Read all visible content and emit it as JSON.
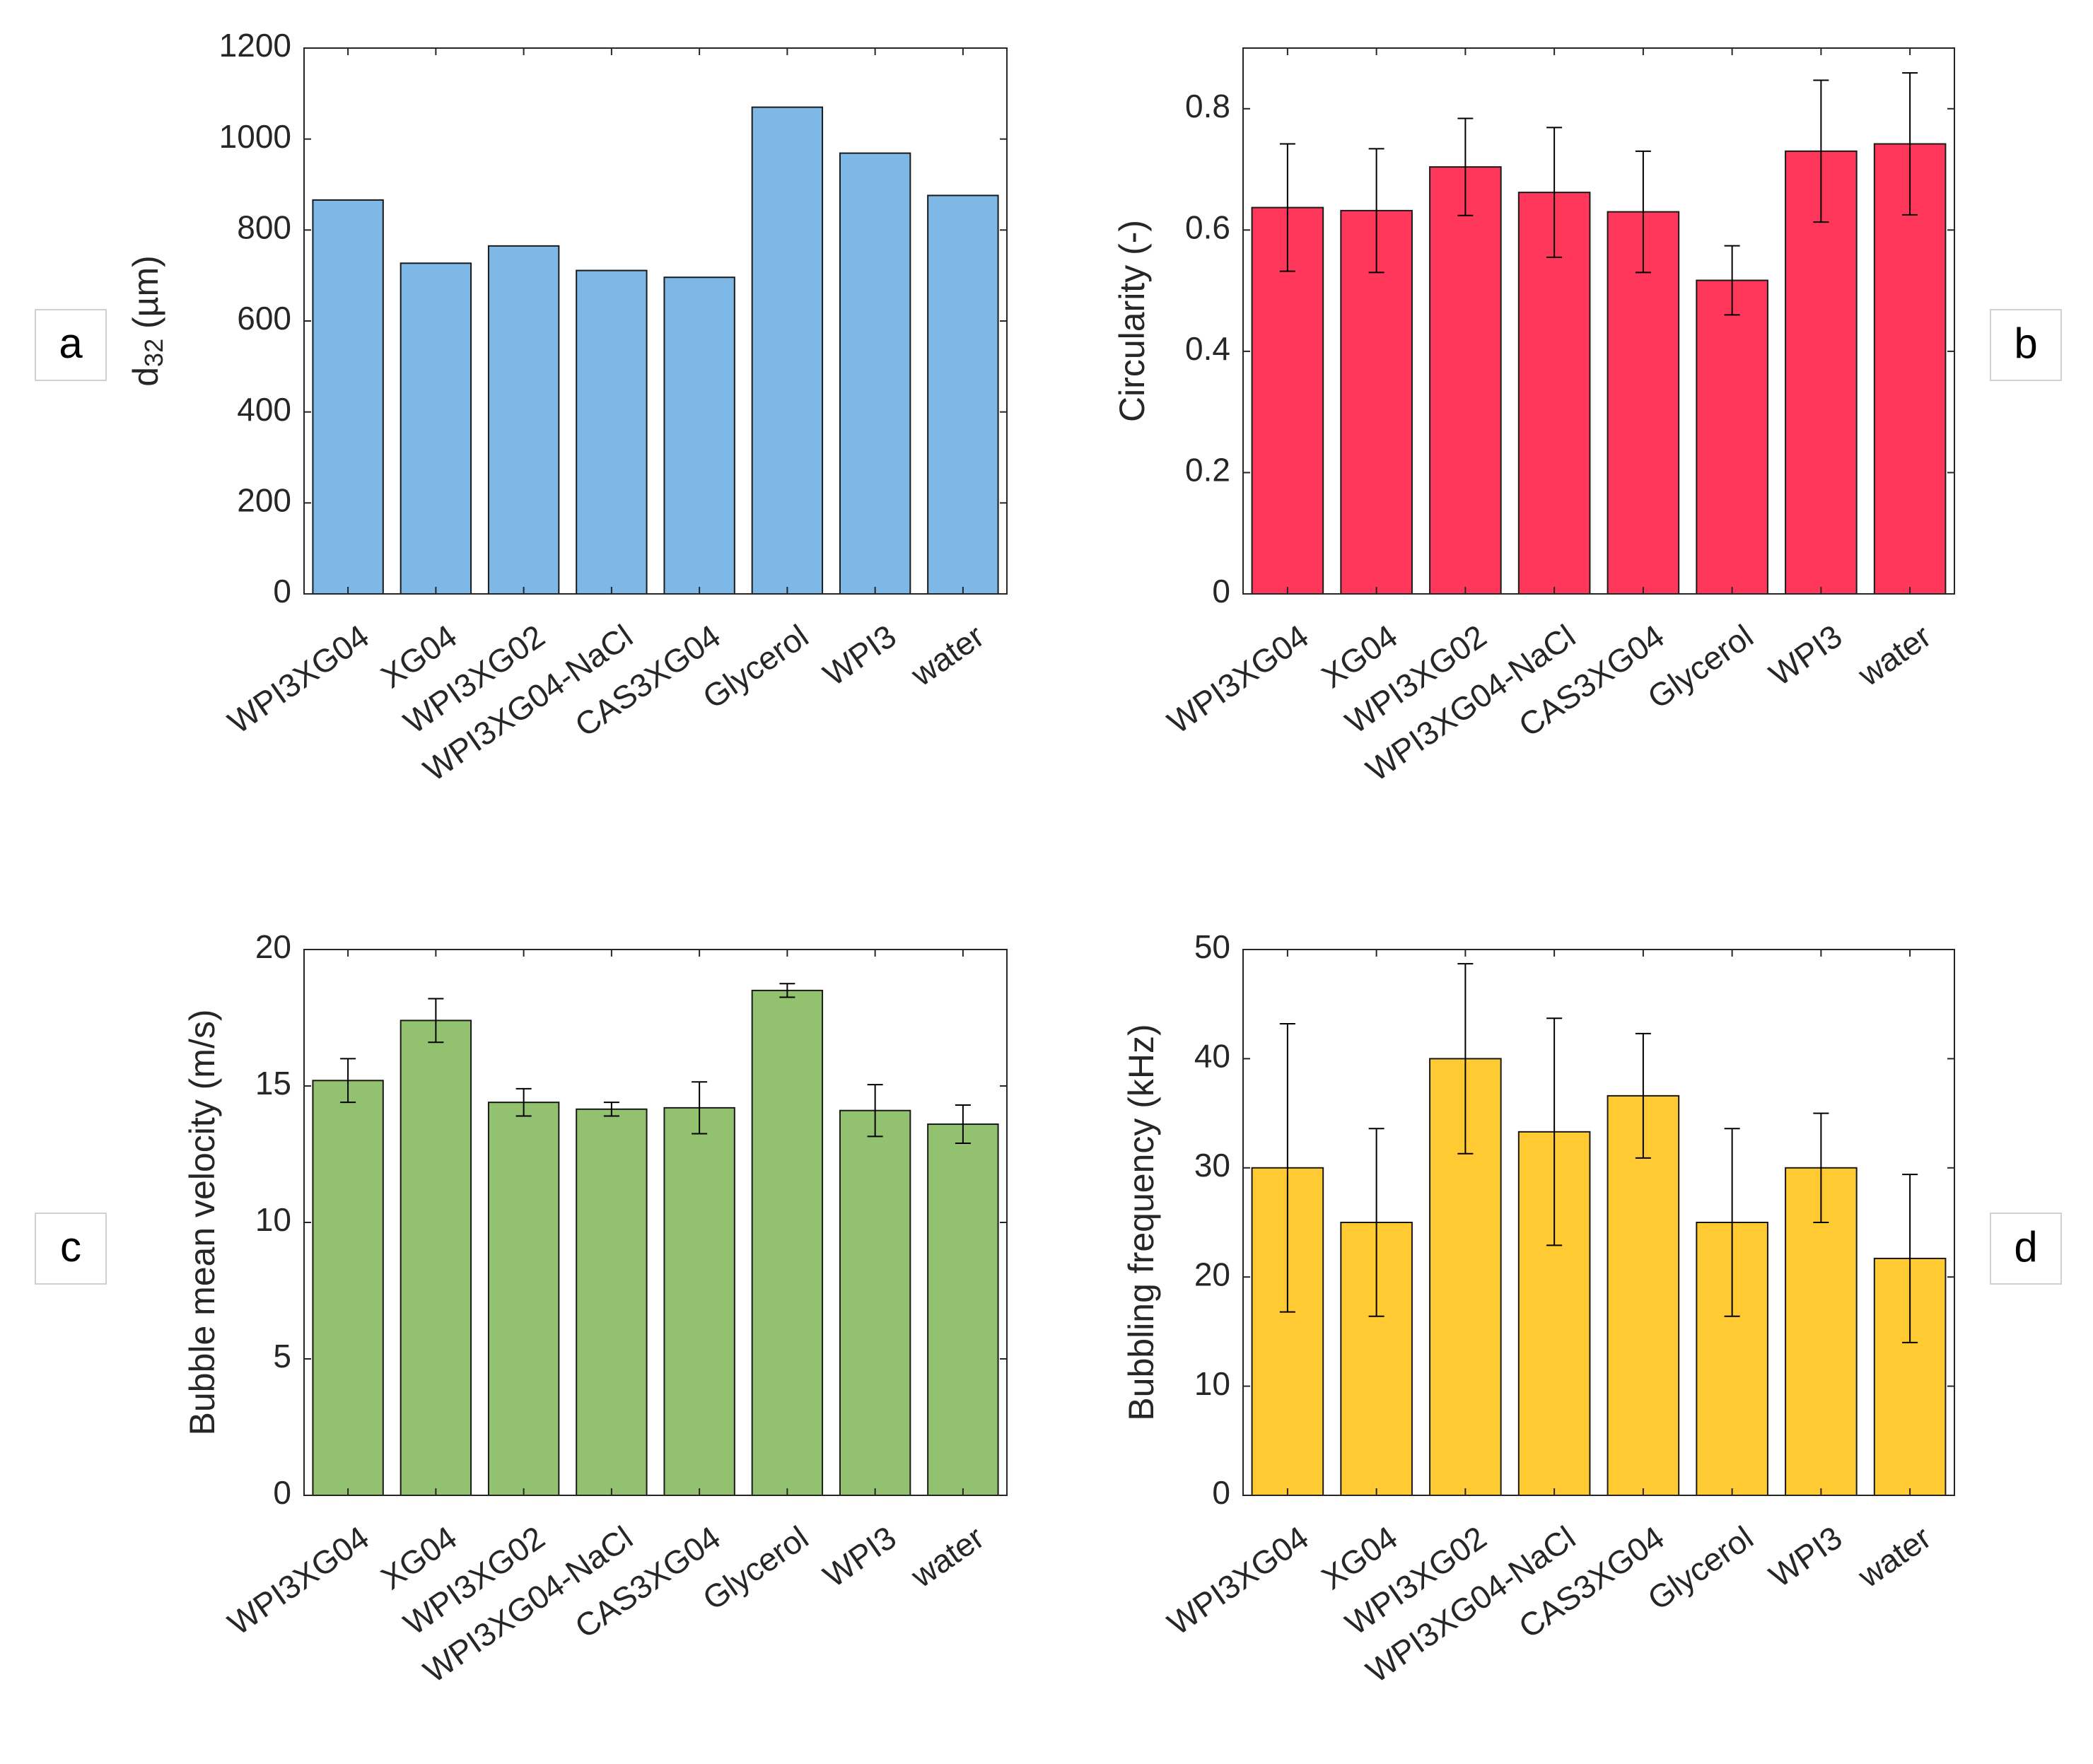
{
  "chart_data": [
    {
      "panel_label": "a",
      "type": "bar",
      "categories": [
        "WPI3XG04",
        "XG04",
        "WPI3XG02",
        "WPI3XG04-NaCl",
        "CAS3XG04",
        "Glycerol",
        "WPI3",
        "water"
      ],
      "values": [
        866,
        727,
        765,
        711,
        696,
        1070,
        969,
        876
      ],
      "errors": null,
      "ylabel_main": "d",
      "ylabel_sub": "32",
      "ylabel_rest": " (µm)",
      "ylim": [
        0,
        1200
      ],
      "yticks": [
        0,
        200,
        400,
        600,
        800,
        1000,
        1200
      ],
      "ytick_labels": [
        "0",
        "200",
        "400",
        "600",
        "800",
        "1000",
        "1200"
      ],
      "color": "#7eb8e6",
      "grid": false
    },
    {
      "panel_label": "b",
      "type": "bar",
      "categories": [
        "WPI3XG04",
        "XG04",
        "WPI3XG02",
        "WPI3XG04-NaCl",
        "CAS3XG04",
        "Glycerol",
        "WPI3",
        "water"
      ],
      "values": [
        0.637,
        0.632,
        0.704,
        0.662,
        0.63,
        0.517,
        0.73,
        0.742
      ],
      "errors": [
        0.105,
        0.102,
        0.08,
        0.107,
        0.1,
        0.057,
        0.117,
        0.117
      ],
      "ylabel_main": "Circularity (-)",
      "ylabel_sub": "",
      "ylabel_rest": "",
      "ylim": [
        0,
        0.9
      ],
      "yticks": [
        0,
        0.2,
        0.4,
        0.6,
        0.8
      ],
      "ytick_labels": [
        "0",
        "0.2",
        "0.4",
        "0.6",
        "0.8"
      ],
      "color": "#ff385b",
      "grid": false
    },
    {
      "panel_label": "c",
      "type": "bar",
      "categories": [
        "WPI3XG04",
        "XG04",
        "WPI3XG02",
        "WPI3XG04-NaCl",
        "CAS3XG04",
        "Glycerol",
        "WPI3",
        "water"
      ],
      "values": [
        15.2,
        17.4,
        14.4,
        14.15,
        14.2,
        18.5,
        14.1,
        13.6
      ],
      "errors": [
        0.8,
        0.8,
        0.5,
        0.25,
        0.95,
        0.25,
        0.95,
        0.7
      ],
      "ylabel_main": "Bubble mean velocity (m/s)",
      "ylabel_sub": "",
      "ylabel_rest": "",
      "ylim": [
        0,
        20
      ],
      "yticks": [
        0,
        5,
        10,
        15,
        20
      ],
      "ytick_labels": [
        "0",
        "5",
        "10",
        "15",
        "20"
      ],
      "color": "#92c26f",
      "grid": false
    },
    {
      "panel_label": "d",
      "type": "bar",
      "categories": [
        "WPI3XG04",
        "XG04",
        "WPI3XG02",
        "WPI3XG04-NaCl",
        "CAS3XG04",
        "Glycerol",
        "WPI3",
        "water"
      ],
      "values": [
        30.0,
        25.0,
        40.0,
        33.3,
        36.6,
        25.0,
        30.0,
        21.7
      ],
      "errors": [
        13.2,
        8.6,
        8.7,
        10.4,
        5.7,
        8.6,
        5.0,
        7.7
      ],
      "ylabel_main": "Bubbling frequency (kHz)",
      "ylabel_sub": "",
      "ylabel_rest": "",
      "ylim": [
        0,
        50
      ],
      "yticks": [
        0,
        10,
        20,
        30,
        40,
        50
      ],
      "ytick_labels": [
        "0",
        "10",
        "20",
        "30",
        "40",
        "50"
      ],
      "color": "#ffca32",
      "grid": false
    }
  ]
}
